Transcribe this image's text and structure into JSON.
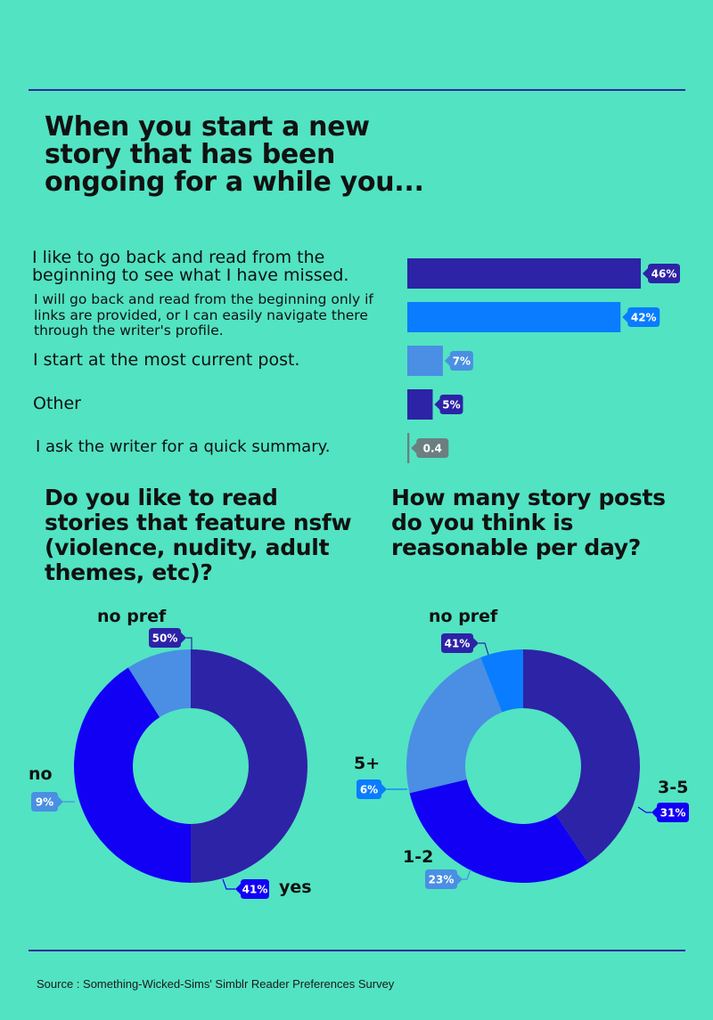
{
  "colors": {
    "background": "#52e3c2",
    "rule": "#2d2a9e",
    "series": [
      "#2d23a6",
      "#0a7cff",
      "#4a8fe3",
      "#2d23a6",
      "#6b7f80"
    ],
    "yes": "#1200f5",
    "no_pref": "#2d23a6",
    "no": "#4a8fe3",
    "posts": {
      "no_pref": "#2d23a6",
      "three_five": "#1200f5",
      "one_two": "#4a8fe3",
      "five_plus": "#0a7cff"
    }
  },
  "chart_data": [
    {
      "type": "bar",
      "title": "When you start a new story that has been ongoing for a while you...",
      "categories": [
        "I like to go back and read from the beginning to see what I have missed.",
        "I will go back and read from the beginning only if links are provided, or I can easily navigate there through the writer's profile.",
        "I start at the most current post.",
        "Other",
        "I ask the writer for a quick summary."
      ],
      "values": [
        46,
        42,
        7,
        5,
        0.4
      ],
      "value_labels": [
        "46%",
        "42%",
        "7%",
        "5%",
        "0.4"
      ],
      "orientation": "horizontal",
      "xlim": [
        0,
        60
      ]
    },
    {
      "type": "pie",
      "title": "Do you like to read stories that feature nsfw (violence, nudity, adult themes, etc)?",
      "donut": true,
      "categories": [
        "no pref",
        "yes",
        "no"
      ],
      "values": [
        50,
        41,
        9
      ],
      "value_labels": [
        "50%",
        "41%",
        "9%"
      ]
    },
    {
      "type": "pie",
      "title": "How many story posts do you think is reasonable per day?",
      "donut": true,
      "categories": [
        "no pref",
        "3-5",
        "1-2",
        "5+"
      ],
      "values": [
        41,
        31,
        23,
        6
      ],
      "value_labels": [
        "41%",
        "31%",
        "23%",
        "6%"
      ]
    }
  ],
  "source": "Source : Something-Wicked-Sims' Simblr Reader Preferences Survey"
}
